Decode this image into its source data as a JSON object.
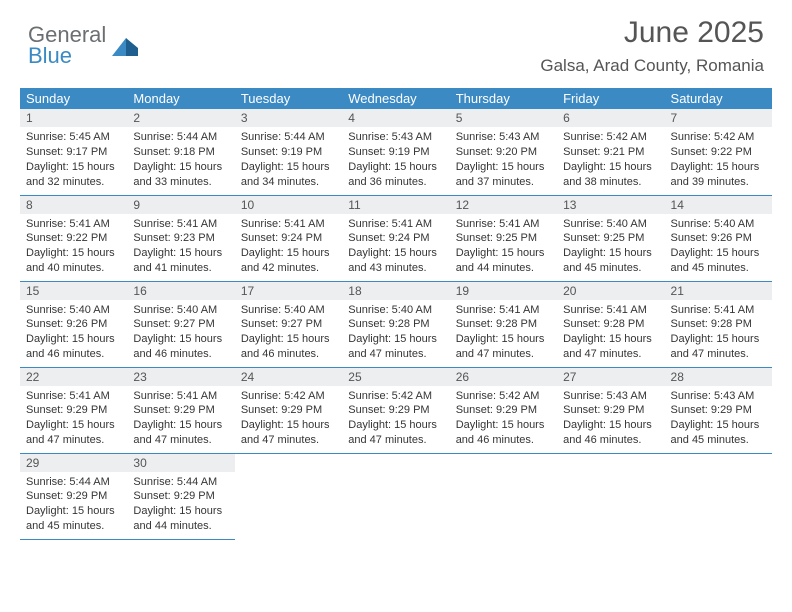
{
  "logo": {
    "line1": "General",
    "line2": "Blue"
  },
  "title": "June 2025",
  "location": "Galsa, Arad County, Romania",
  "colors": {
    "header_bg": "#3b8ac4",
    "header_fg": "#ffffff",
    "daynum_bg": "#eceeef",
    "border": "#3b8ac4",
    "logo_gray": "#6b6f72",
    "logo_blue": "#3b8ac4"
  },
  "weekdays": [
    "Sunday",
    "Monday",
    "Tuesday",
    "Wednesday",
    "Thursday",
    "Friday",
    "Saturday"
  ],
  "weeks": [
    [
      {
        "n": "1",
        "sr": "5:45 AM",
        "ss": "9:17 PM",
        "dl": "15 hours and 32 minutes."
      },
      {
        "n": "2",
        "sr": "5:44 AM",
        "ss": "9:18 PM",
        "dl": "15 hours and 33 minutes."
      },
      {
        "n": "3",
        "sr": "5:44 AM",
        "ss": "9:19 PM",
        "dl": "15 hours and 34 minutes."
      },
      {
        "n": "4",
        "sr": "5:43 AM",
        "ss": "9:19 PM",
        "dl": "15 hours and 36 minutes."
      },
      {
        "n": "5",
        "sr": "5:43 AM",
        "ss": "9:20 PM",
        "dl": "15 hours and 37 minutes."
      },
      {
        "n": "6",
        "sr": "5:42 AM",
        "ss": "9:21 PM",
        "dl": "15 hours and 38 minutes."
      },
      {
        "n": "7",
        "sr": "5:42 AM",
        "ss": "9:22 PM",
        "dl": "15 hours and 39 minutes."
      }
    ],
    [
      {
        "n": "8",
        "sr": "5:41 AM",
        "ss": "9:22 PM",
        "dl": "15 hours and 40 minutes."
      },
      {
        "n": "9",
        "sr": "5:41 AM",
        "ss": "9:23 PM",
        "dl": "15 hours and 41 minutes."
      },
      {
        "n": "10",
        "sr": "5:41 AM",
        "ss": "9:24 PM",
        "dl": "15 hours and 42 minutes."
      },
      {
        "n": "11",
        "sr": "5:41 AM",
        "ss": "9:24 PM",
        "dl": "15 hours and 43 minutes."
      },
      {
        "n": "12",
        "sr": "5:41 AM",
        "ss": "9:25 PM",
        "dl": "15 hours and 44 minutes."
      },
      {
        "n": "13",
        "sr": "5:40 AM",
        "ss": "9:25 PM",
        "dl": "15 hours and 45 minutes."
      },
      {
        "n": "14",
        "sr": "5:40 AM",
        "ss": "9:26 PM",
        "dl": "15 hours and 45 minutes."
      }
    ],
    [
      {
        "n": "15",
        "sr": "5:40 AM",
        "ss": "9:26 PM",
        "dl": "15 hours and 46 minutes."
      },
      {
        "n": "16",
        "sr": "5:40 AM",
        "ss": "9:27 PM",
        "dl": "15 hours and 46 minutes."
      },
      {
        "n": "17",
        "sr": "5:40 AM",
        "ss": "9:27 PM",
        "dl": "15 hours and 46 minutes."
      },
      {
        "n": "18",
        "sr": "5:40 AM",
        "ss": "9:28 PM",
        "dl": "15 hours and 47 minutes."
      },
      {
        "n": "19",
        "sr": "5:41 AM",
        "ss": "9:28 PM",
        "dl": "15 hours and 47 minutes."
      },
      {
        "n": "20",
        "sr": "5:41 AM",
        "ss": "9:28 PM",
        "dl": "15 hours and 47 minutes."
      },
      {
        "n": "21",
        "sr": "5:41 AM",
        "ss": "9:28 PM",
        "dl": "15 hours and 47 minutes."
      }
    ],
    [
      {
        "n": "22",
        "sr": "5:41 AM",
        "ss": "9:29 PM",
        "dl": "15 hours and 47 minutes."
      },
      {
        "n": "23",
        "sr": "5:41 AM",
        "ss": "9:29 PM",
        "dl": "15 hours and 47 minutes."
      },
      {
        "n": "24",
        "sr": "5:42 AM",
        "ss": "9:29 PM",
        "dl": "15 hours and 47 minutes."
      },
      {
        "n": "25",
        "sr": "5:42 AM",
        "ss": "9:29 PM",
        "dl": "15 hours and 47 minutes."
      },
      {
        "n": "26",
        "sr": "5:42 AM",
        "ss": "9:29 PM",
        "dl": "15 hours and 46 minutes."
      },
      {
        "n": "27",
        "sr": "5:43 AM",
        "ss": "9:29 PM",
        "dl": "15 hours and 46 minutes."
      },
      {
        "n": "28",
        "sr": "5:43 AM",
        "ss": "9:29 PM",
        "dl": "15 hours and 45 minutes."
      }
    ],
    [
      {
        "n": "29",
        "sr": "5:44 AM",
        "ss": "9:29 PM",
        "dl": "15 hours and 45 minutes."
      },
      {
        "n": "30",
        "sr": "5:44 AM",
        "ss": "9:29 PM",
        "dl": "15 hours and 44 minutes."
      },
      null,
      null,
      null,
      null,
      null
    ]
  ],
  "labels": {
    "sunrise": "Sunrise:",
    "sunset": "Sunset:",
    "daylight": "Daylight:"
  }
}
